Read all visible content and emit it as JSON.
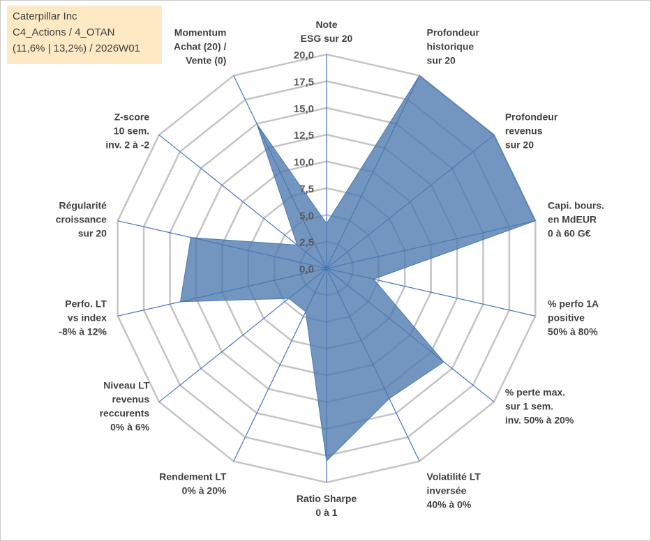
{
  "title_box": {
    "line1": "Caterpillar Inc",
    "line2": "C4_Actions / 4_OTAN",
    "line3": "(11,6% | 13,2%) / 2026W01"
  },
  "chart_data": {
    "type": "radar",
    "axes": [
      {
        "label": [
          "Note",
          "ESG sur 20"
        ]
      },
      {
        "label": [
          "Profondeur",
          "historique",
          "sur 20"
        ]
      },
      {
        "label": [
          "Profondeur",
          "revenus",
          "sur 20"
        ]
      },
      {
        "label": [
          "Capi. bours.",
          "en MdEUR",
          "0 à 60 G€"
        ]
      },
      {
        "label": [
          "% perfo 1A",
          "positive",
          "50% à 80%"
        ]
      },
      {
        "label": [
          "% perte max.",
          "sur 1 sem.",
          "inv. 50% à 20%"
        ]
      },
      {
        "label": [
          "Volatilité LT",
          "inversée",
          "40% à 0%"
        ]
      },
      {
        "label": [
          "Ratio Sharpe",
          "0 à 1"
        ]
      },
      {
        "label": [
          "Rendement LT",
          "0% à 20%"
        ]
      },
      {
        "label": [
          "Niveau LT",
          "revenus",
          "reccurents",
          "0% à 6%"
        ]
      },
      {
        "label": [
          "Perfo. LT",
          "vs index",
          "-8% à 12%"
        ]
      },
      {
        "label": [
          "Régularité",
          "croissance",
          "sur 20"
        ]
      },
      {
        "label": [
          "Z-score",
          "10 sem.",
          "inv. 2 à -2"
        ]
      },
      {
        "label": [
          "Momentum",
          "Achat (20) /",
          "Vente (0)"
        ]
      }
    ],
    "series": [
      {
        "name": "Caterpillar Inc",
        "color": "#4a78ad",
        "values": [
          4.2,
          20.0,
          20.0,
          20.0,
          4.5,
          14.0,
          13.5,
          18.0,
          4.5,
          4.5,
          14.0,
          13.0,
          3.5,
          15.0
        ]
      }
    ],
    "rlim": [
      0,
      20
    ],
    "ticks": [
      "0,0",
      "2,5",
      "5,0",
      "7,5",
      "10,0",
      "12,5",
      "15,0",
      "17,5",
      "20,0"
    ],
    "grid": true
  }
}
